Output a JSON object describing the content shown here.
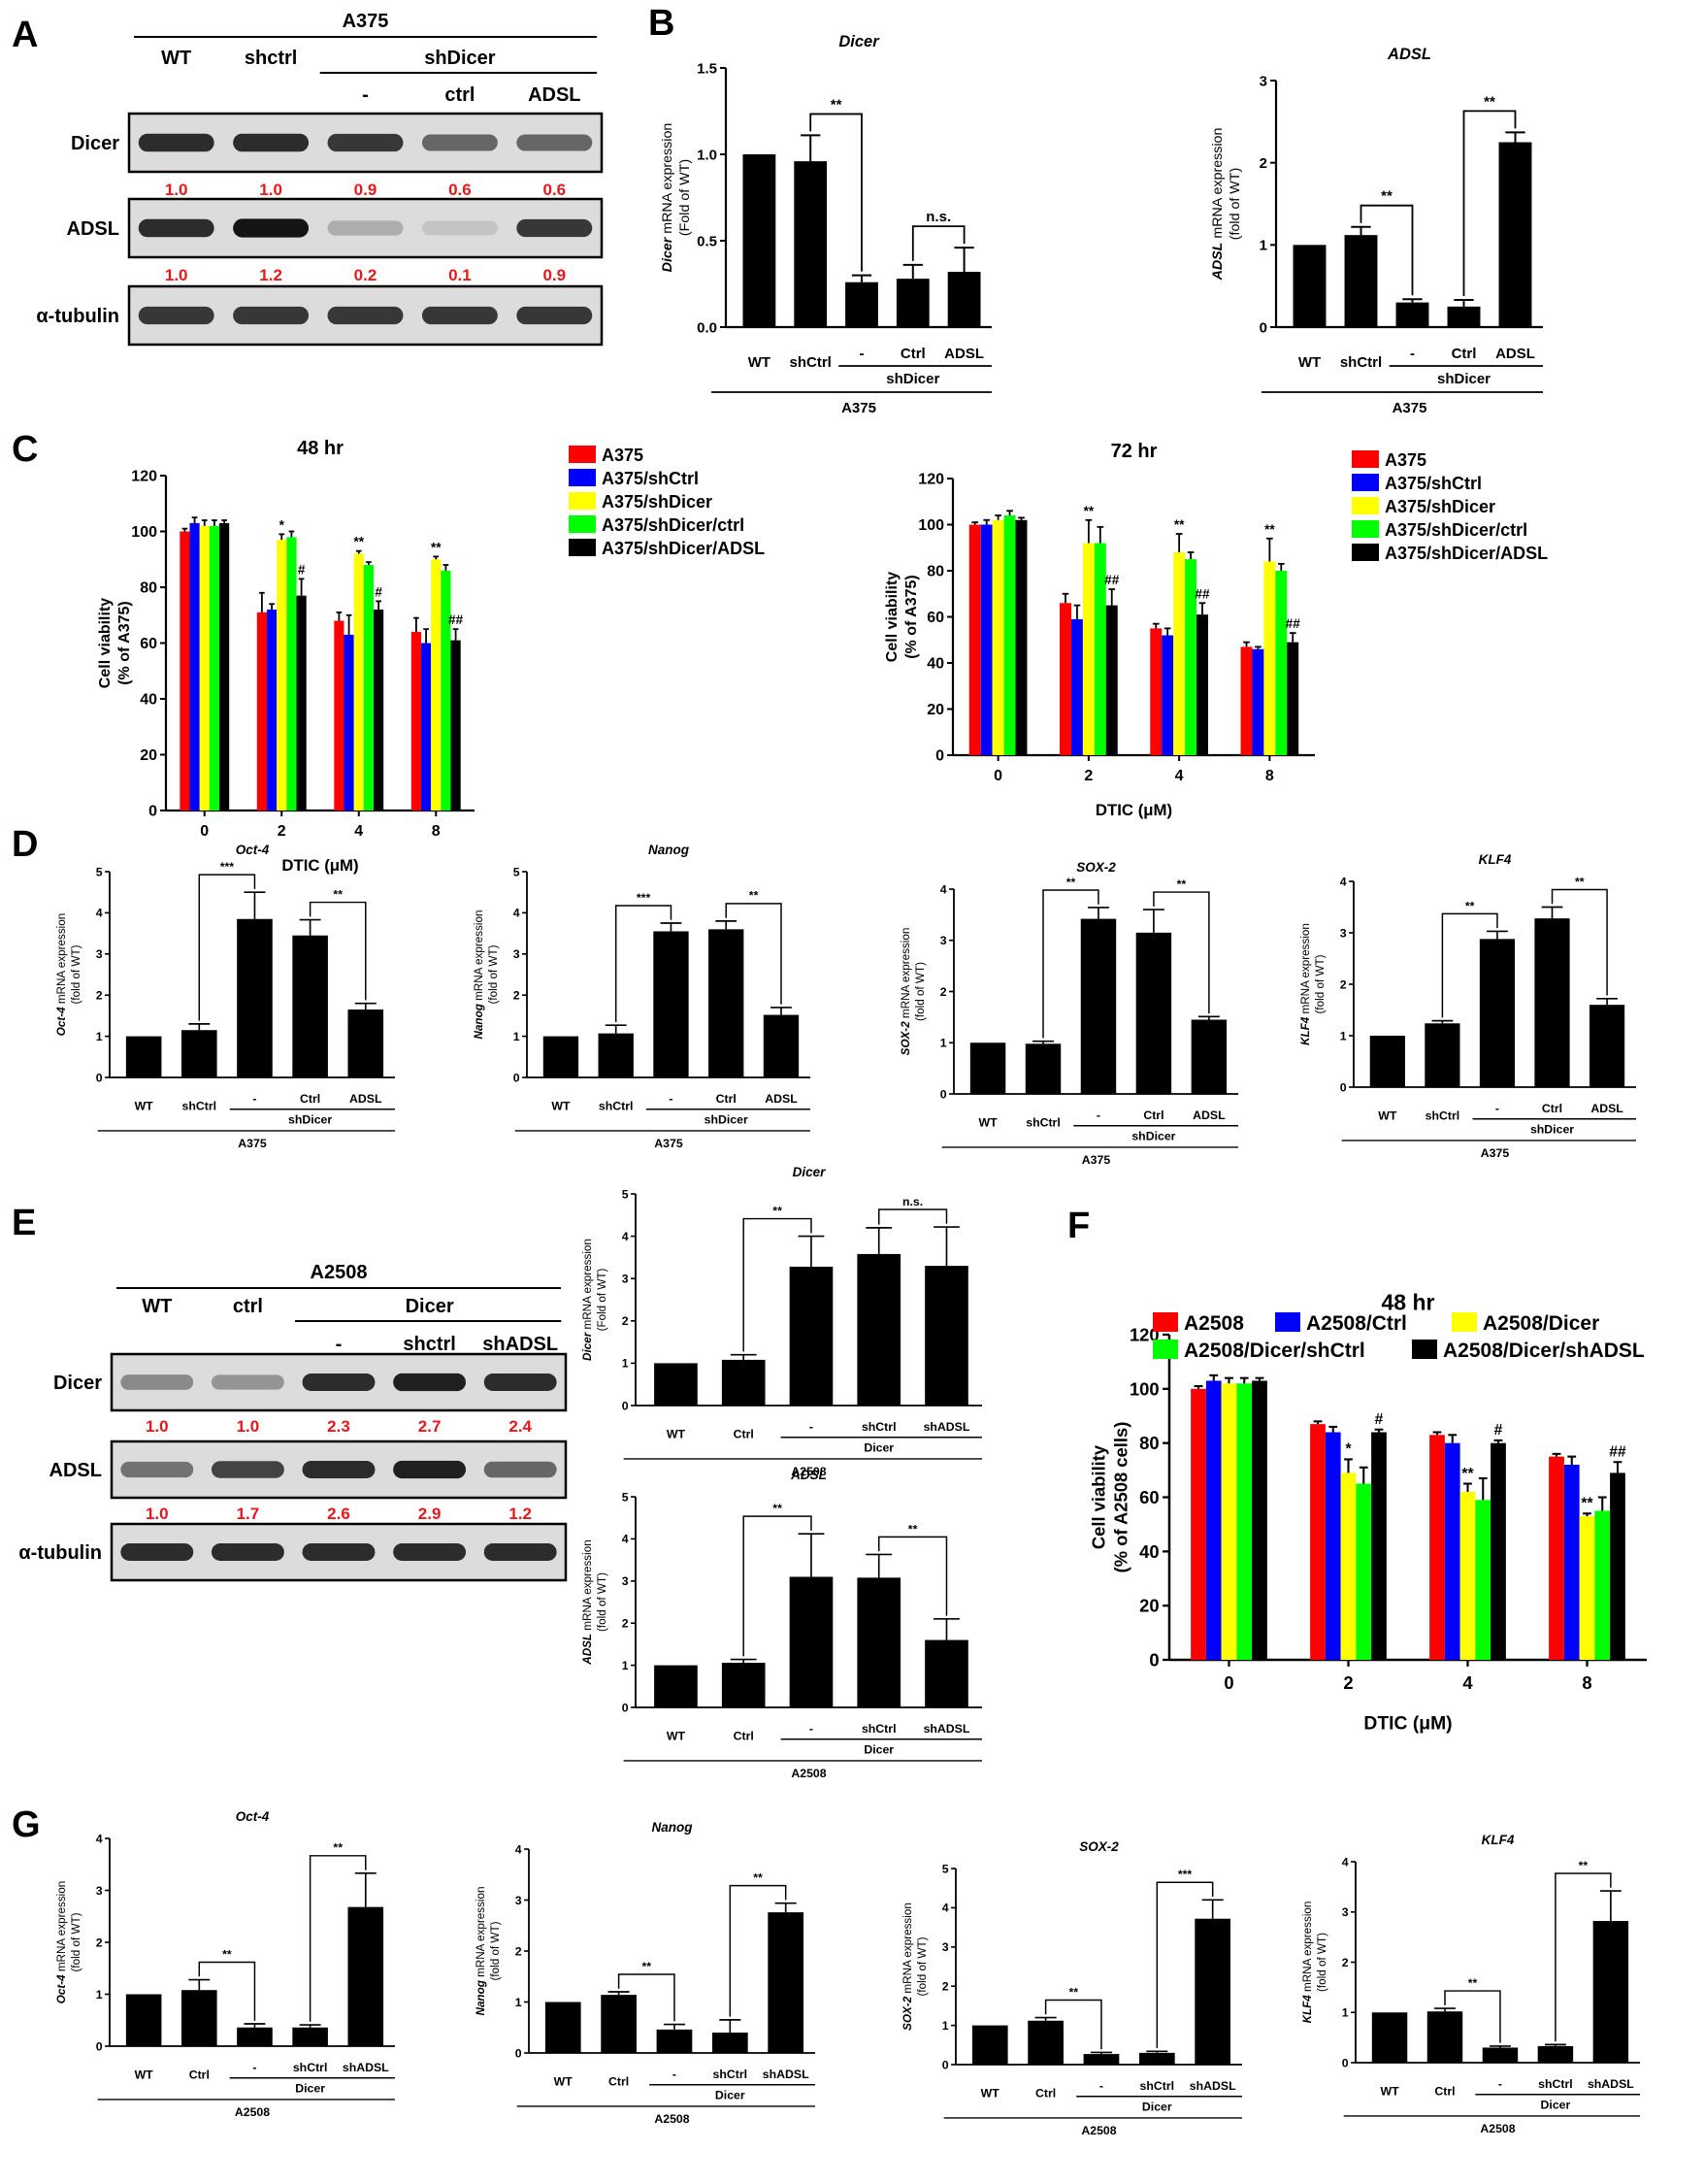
{
  "figure": {
    "panel_letters": [
      "A",
      "B",
      "C",
      "D",
      "E",
      "F",
      "G"
    ],
    "panel_A": {
      "cell_line": "A375",
      "lanes": [
        "WT",
        "shctrl",
        "-",
        "ctrl",
        "ADSL"
      ],
      "group_label": "shDicer",
      "blots": [
        {
          "name": "Dicer",
          "quant": [
            "1.0",
            "1.0",
            "0.9",
            "0.6",
            "0.6"
          ],
          "intensity": [
            0.9,
            0.9,
            0.85,
            0.65,
            0.65
          ]
        },
        {
          "name": "ADSL",
          "quant": [
            "1.0",
            "1.2",
            "0.2",
            "0.1",
            "0.9"
          ],
          "intensity": [
            0.9,
            1.0,
            0.35,
            0.25,
            0.85
          ]
        },
        {
          "name": "α-tubulin",
          "quant": [],
          "intensity": [
            0.85,
            0.85,
            0.85,
            0.85,
            0.85
          ]
        }
      ]
    },
    "panel_E": {
      "cell_line": "A2508",
      "lanes": [
        "WT",
        "ctrl",
        "-",
        "shctrl",
        "shADSL"
      ],
      "group_label": "Dicer",
      "blots": [
        {
          "name": "Dicer",
          "quant": [
            "1.0",
            "1.0",
            "2.3",
            "2.7",
            "2.4"
          ],
          "intensity": [
            0.5,
            0.45,
            0.9,
            0.95,
            0.9
          ]
        },
        {
          "name": "ADSL",
          "quant": [
            "1.0",
            "1.7",
            "2.6",
            "2.9",
            "1.2"
          ],
          "intensity": [
            0.6,
            0.8,
            0.9,
            0.95,
            0.65
          ]
        },
        {
          "name": "α-tubulin",
          "quant": [],
          "intensity": [
            0.9,
            0.9,
            0.9,
            0.9,
            0.9
          ]
        }
      ]
    }
  },
  "chart_data": [
    {
      "type": "bar",
      "title": "Dicer",
      "ylabel_italic": "Dicer",
      "ylabel_rest": " mRNA expression",
      "ylabel2": "(Fold of WT)",
      "categories": [
        "WT",
        "shCtrl",
        "-",
        "Ctrl",
        "ADSL"
      ],
      "group_label": "shDicer",
      "cell_line": "A375",
      "values": [
        1.0,
        0.96,
        0.26,
        0.28,
        0.32
      ],
      "errors": [
        0,
        0.15,
        0.04,
        0.08,
        0.14
      ],
      "ylim": [
        0,
        1.5
      ],
      "yticks": [
        "0.0",
        "0.5",
        "1.0",
        "1.5"
      ],
      "brackets": [
        {
          "from": 1,
          "to": 2,
          "label": "**"
        },
        {
          "from": 3,
          "to": 4,
          "label": "n.s."
        }
      ]
    },
    {
      "type": "bar",
      "title": "ADSL",
      "ylabel_italic": "ADSL",
      "ylabel_rest": " mRNA expression",
      "ylabel2": "(fold of WT)",
      "categories": [
        "WT",
        "shCtrl",
        "-",
        "Ctrl",
        "ADSL"
      ],
      "group_label": "shDicer",
      "cell_line": "A375",
      "values": [
        1.0,
        1.12,
        0.3,
        0.25,
        2.25
      ],
      "errors": [
        0,
        0.1,
        0.04,
        0.08,
        0.12
      ],
      "ylim": [
        0,
        3
      ],
      "yticks": [
        "0",
        "1",
        "2",
        "3"
      ],
      "brackets": [
        {
          "from": 1,
          "to": 2,
          "label": "**"
        },
        {
          "from": 3,
          "to": 4,
          "label": "**"
        }
      ]
    },
    {
      "type": "bar",
      "title": "48 hr",
      "xlabel": "DTIC (μM)",
      "ylabel": "Cell viability",
      "ylabel2": "(% of A375)",
      "categories": [
        "0",
        "2",
        "4",
        "8"
      ],
      "series": [
        {
          "name": "A375",
          "color": "#ff0000",
          "values": [
            100,
            71,
            68,
            64
          ],
          "errors": [
            1,
            7,
            3,
            5
          ]
        },
        {
          "name": "A375/shCtrl",
          "color": "#0000ff",
          "values": [
            103,
            72,
            63,
            60
          ],
          "errors": [
            2,
            2,
            7,
            5
          ]
        },
        {
          "name": "A375/shDicer",
          "color": "#ffff00",
          "values": [
            102,
            97,
            92,
            90
          ],
          "errors": [
            2,
            2,
            1,
            1
          ]
        },
        {
          "name": "A375/shDicer/ctrl",
          "color": "#00ff00",
          "values": [
            102,
            98,
            88,
            86
          ],
          "errors": [
            2,
            2,
            1,
            2
          ]
        },
        {
          "name": "A375/shDicer/ADSL",
          "color": "#000000",
          "values": [
            103,
            77,
            72,
            61
          ],
          "errors": [
            1,
            6,
            3,
            4
          ]
        }
      ],
      "annotations": [
        {
          "cat": 1,
          "series": 2,
          "label": "*"
        },
        {
          "cat": 1,
          "series": 4,
          "label": "#"
        },
        {
          "cat": 2,
          "series": 2,
          "label": "**"
        },
        {
          "cat": 2,
          "series": 4,
          "label": "#"
        },
        {
          "cat": 3,
          "series": 2,
          "label": "**"
        },
        {
          "cat": 3,
          "series": 4,
          "label": "##"
        }
      ],
      "ylim": [
        0,
        120
      ],
      "yticks": [
        "0",
        "20",
        "40",
        "60",
        "80",
        "100",
        "120"
      ]
    },
    {
      "type": "bar",
      "title": "72 hr",
      "xlabel": "DTIC (μM)",
      "ylabel": "Cell viability",
      "ylabel2": "(% of A375)",
      "categories": [
        "0",
        "2",
        "4",
        "8"
      ],
      "series": [
        {
          "name": "A375",
          "color": "#ff0000",
          "values": [
            100,
            66,
            55,
            47
          ],
          "errors": [
            1,
            4,
            2,
            2
          ]
        },
        {
          "name": "A375/shCtrl",
          "color": "#0000ff",
          "values": [
            100,
            59,
            52,
            46
          ],
          "errors": [
            2,
            6,
            3,
            1
          ]
        },
        {
          "name": "A375/shDicer",
          "color": "#ffff00",
          "values": [
            102,
            92,
            88,
            84
          ],
          "errors": [
            2,
            10,
            8,
            10
          ]
        },
        {
          "name": "A375/shDicer/ctrl",
          "color": "#00ff00",
          "values": [
            104,
            92,
            85,
            80
          ],
          "errors": [
            2,
            7,
            3,
            3
          ]
        },
        {
          "name": "A375/shDicer/ADSL",
          "color": "#000000",
          "values": [
            102,
            65,
            61,
            49
          ],
          "errors": [
            1,
            7,
            5,
            4
          ]
        }
      ],
      "annotations": [
        {
          "cat": 1,
          "series": 2,
          "label": "**"
        },
        {
          "cat": 1,
          "series": 4,
          "label": "##"
        },
        {
          "cat": 2,
          "series": 2,
          "label": "**"
        },
        {
          "cat": 2,
          "series": 4,
          "label": "##"
        },
        {
          "cat": 3,
          "series": 2,
          "label": "**"
        },
        {
          "cat": 3,
          "series": 4,
          "label": "##"
        }
      ],
      "ylim": [
        0,
        120
      ],
      "yticks": [
        "0",
        "20",
        "40",
        "60",
        "80",
        "100",
        "120"
      ]
    },
    {
      "type": "bar",
      "title": "Oct-4",
      "ylabel_italic": "Oct-4",
      "ylabel_rest": " mRNA expression",
      "ylabel2": "(fold of WT)",
      "categories": [
        "WT",
        "shCtrl",
        "-",
        "Ctrl",
        "ADSL"
      ],
      "group_label": "shDicer",
      "cell_line": "A375",
      "values": [
        1.0,
        1.15,
        3.85,
        3.45,
        1.65
      ],
      "errors": [
        0,
        0.15,
        0.65,
        0.38,
        0.15
      ],
      "ylim": [
        0,
        5
      ],
      "yticks": [
        "0",
        "1",
        "2",
        "3",
        "4",
        "5"
      ],
      "brackets": [
        {
          "from": 1,
          "to": 2,
          "label": "***"
        },
        {
          "from": 3,
          "to": 4,
          "label": "**"
        }
      ]
    },
    {
      "type": "bar",
      "title": "Nanog",
      "ylabel_italic": "Nanog",
      "ylabel_rest": " mRNA expression",
      "ylabel2": "(fold of WT)",
      "categories": [
        "WT",
        "shCtrl",
        "-",
        "Ctrl",
        "ADSL"
      ],
      "group_label": "shDicer",
      "cell_line": "A375",
      "values": [
        1.0,
        1.07,
        3.55,
        3.6,
        1.52
      ],
      "errors": [
        0,
        0.2,
        0.2,
        0.2,
        0.18
      ],
      "ylim": [
        0,
        5
      ],
      "yticks": [
        "0",
        "1",
        "2",
        "3",
        "4",
        "5"
      ],
      "brackets": [
        {
          "from": 1,
          "to": 2,
          "label": "***"
        },
        {
          "from": 3,
          "to": 4,
          "label": "**"
        }
      ]
    },
    {
      "type": "bar",
      "title": "SOX-2",
      "ylabel_italic": "SOX-2",
      "ylabel_rest": " mRNA expression",
      "ylabel2": "(fold of WT)",
      "categories": [
        "WT",
        "shCtrl",
        "-",
        "Ctrl",
        "ADSL"
      ],
      "group_label": "shDicer",
      "cell_line": "A375",
      "values": [
        1.0,
        0.98,
        3.42,
        3.15,
        1.45
      ],
      "errors": [
        0,
        0.05,
        0.22,
        0.45,
        0.06
      ],
      "ylim": [
        0,
        4
      ],
      "yticks": [
        "0",
        "1",
        "2",
        "3",
        "4"
      ],
      "brackets": [
        {
          "from": 1,
          "to": 2,
          "label": "**"
        },
        {
          "from": 3,
          "to": 4,
          "label": "**"
        }
      ]
    },
    {
      "type": "bar",
      "title": "KLF4",
      "ylabel_italic": "KLF4",
      "ylabel_rest": " mRNA expression",
      "ylabel2": "(fold of WT)",
      "categories": [
        "WT",
        "shCtrl",
        "-",
        "Ctrl",
        "ADSL"
      ],
      "group_label": "shDicer",
      "cell_line": "A375",
      "values": [
        1.0,
        1.24,
        2.88,
        3.28,
        1.6
      ],
      "errors": [
        0,
        0.05,
        0.15,
        0.22,
        0.12
      ],
      "ylim": [
        0,
        4
      ],
      "yticks": [
        "0",
        "1",
        "2",
        "3",
        "4"
      ],
      "brackets": [
        {
          "from": 1,
          "to": 2,
          "label": "**"
        },
        {
          "from": 3,
          "to": 4,
          "label": "**"
        }
      ]
    },
    {
      "type": "bar",
      "title": "Dicer",
      "ylabel_italic": "Dicer",
      "ylabel_rest": " mRNA expression",
      "ylabel2": "(Fold of WT)",
      "categories": [
        "WT",
        "Ctrl",
        "-",
        "shCtrl",
        "shADSL"
      ],
      "group_label": "Dicer",
      "cell_line": "A2508",
      "values": [
        1.0,
        1.08,
        3.28,
        3.58,
        3.3
      ],
      "errors": [
        0,
        0.12,
        0.72,
        0.62,
        0.92
      ],
      "ylim": [
        0,
        5
      ],
      "yticks": [
        "0",
        "1",
        "2",
        "3",
        "4",
        "5"
      ],
      "brackets": [
        {
          "from": 1,
          "to": 2,
          "label": "**"
        },
        {
          "from": 3,
          "to": 4,
          "label": "n.s."
        }
      ]
    },
    {
      "type": "bar",
      "title": "ADSL",
      "ylabel_italic": "ADSL",
      "ylabel_rest": " mRNA expression",
      "ylabel2": "(fold of WT)",
      "categories": [
        "WT",
        "Ctrl",
        "-",
        "shCtrl",
        "shADSL"
      ],
      "group_label": "Dicer",
      "cell_line": "A2508",
      "values": [
        1.0,
        1.06,
        3.1,
        3.08,
        1.6
      ],
      "errors": [
        0,
        0.08,
        1.02,
        0.55,
        0.5
      ],
      "ylim": [
        0,
        5
      ],
      "yticks": [
        "0",
        "1",
        "2",
        "3",
        "4",
        "5"
      ],
      "brackets": [
        {
          "from": 1,
          "to": 2,
          "label": "**"
        },
        {
          "from": 3,
          "to": 4,
          "label": "**"
        }
      ]
    },
    {
      "type": "bar",
      "title": "48 hr",
      "xlabel": "DTIC (μM)",
      "ylabel": "Cell viability",
      "ylabel2": "(% of A2508 cells)",
      "categories": [
        "0",
        "2",
        "4",
        "8"
      ],
      "series": [
        {
          "name": "A2508",
          "color": "#ff0000",
          "values": [
            100,
            87,
            83,
            75
          ],
          "errors": [
            1,
            1,
            1,
            1
          ]
        },
        {
          "name": "A2508/Ctrl",
          "color": "#0000ff",
          "values": [
            103,
            84,
            80,
            72
          ],
          "errors": [
            2,
            2,
            3,
            3
          ]
        },
        {
          "name": "A2508/Dicer",
          "color": "#ffff00",
          "values": [
            102,
            69,
            62,
            53
          ],
          "errors": [
            2,
            5,
            3,
            1
          ]
        },
        {
          "name": "A2508/Dicer/shCtrl",
          "color": "#00ff00",
          "values": [
            102,
            65,
            59,
            55
          ],
          "errors": [
            2,
            6,
            8,
            5
          ]
        },
        {
          "name": "A2508/Dicer/shADSL",
          "color": "#000000",
          "values": [
            103,
            84,
            80,
            69
          ],
          "errors": [
            1,
            1,
            1,
            4
          ]
        }
      ],
      "annotations": [
        {
          "cat": 1,
          "series": 2,
          "label": "*"
        },
        {
          "cat": 1,
          "series": 4,
          "label": "#"
        },
        {
          "cat": 2,
          "series": 2,
          "label": "**"
        },
        {
          "cat": 2,
          "series": 4,
          "label": "#"
        },
        {
          "cat": 3,
          "series": 2,
          "label": "**"
        },
        {
          "cat": 3,
          "series": 4,
          "label": "##"
        }
      ],
      "ylim": [
        0,
        120
      ],
      "yticks": [
        "0",
        "20",
        "40",
        "60",
        "80",
        "100",
        "120"
      ]
    },
    {
      "type": "bar",
      "title": "Oct-4",
      "ylabel_italic": "Oct-4",
      "ylabel_rest": " mRNA expression",
      "ylabel2": "(fold of WT)",
      "categories": [
        "WT",
        "Ctrl",
        "-",
        "shCtrl",
        "shADSL"
      ],
      "group_label": "Dicer",
      "cell_line": "A2508",
      "values": [
        1.0,
        1.08,
        0.36,
        0.36,
        2.68
      ],
      "errors": [
        0,
        0.2,
        0.07,
        0.05,
        0.65
      ],
      "ylim": [
        0,
        4
      ],
      "yticks": [
        "0",
        "1",
        "2",
        "3",
        "4"
      ],
      "brackets": [
        {
          "from": 1,
          "to": 2,
          "label": "**"
        },
        {
          "from": 3,
          "to": 4,
          "label": "**"
        }
      ]
    },
    {
      "type": "bar",
      "title": "Nanog",
      "ylabel_italic": "Nanog",
      "ylabel_rest": " mRNA expression",
      "ylabel2": "(fold of WT)",
      "categories": [
        "WT",
        "Ctrl",
        "-",
        "shCtrl",
        "shADSL"
      ],
      "group_label": "Dicer",
      "cell_line": "A2508",
      "values": [
        1.0,
        1.14,
        0.46,
        0.4,
        2.76
      ],
      "errors": [
        0,
        0.06,
        0.1,
        0.25,
        0.18
      ],
      "ylim": [
        0,
        4
      ],
      "yticks": [
        "0",
        "1",
        "2",
        "3",
        "4"
      ],
      "brackets": [
        {
          "from": 1,
          "to": 2,
          "label": "**"
        },
        {
          "from": 3,
          "to": 4,
          "label": "**"
        }
      ]
    },
    {
      "type": "bar",
      "title": "SOX-2",
      "ylabel_italic": "SOX-2",
      "ylabel_rest": " mRNA expression",
      "ylabel2": "(fold of WT)",
      "categories": [
        "WT",
        "Ctrl",
        "-",
        "shCtrl",
        "shADSL"
      ],
      "group_label": "Dicer",
      "cell_line": "A2508",
      "values": [
        1.0,
        1.12,
        0.27,
        0.3,
        3.72
      ],
      "errors": [
        0,
        0.08,
        0.04,
        0.04,
        0.48
      ],
      "ylim": [
        0,
        5
      ],
      "yticks": [
        "0",
        "1",
        "2",
        "3",
        "4",
        "5"
      ],
      "brackets": [
        {
          "from": 1,
          "to": 2,
          "label": "**"
        },
        {
          "from": 3,
          "to": 4,
          "label": "***"
        }
      ]
    },
    {
      "type": "bar",
      "title": "KLF4",
      "ylabel_italic": "KLF4",
      "ylabel_rest": " mRNA expression",
      "ylabel2": "(fold of WT)",
      "categories": [
        "WT",
        "Ctrl",
        "-",
        "shCtrl",
        "shADSL"
      ],
      "group_label": "Dicer",
      "cell_line": "A2508",
      "values": [
        1.0,
        1.02,
        0.3,
        0.33,
        2.82
      ],
      "errors": [
        0,
        0.06,
        0.03,
        0.03,
        0.6
      ],
      "ylim": [
        0,
        4
      ],
      "yticks": [
        "0",
        "1",
        "2",
        "3",
        "4"
      ],
      "brackets": [
        {
          "from": 1,
          "to": 2,
          "label": "**"
        },
        {
          "from": 3,
          "to": 4,
          "label": "**"
        }
      ]
    }
  ]
}
